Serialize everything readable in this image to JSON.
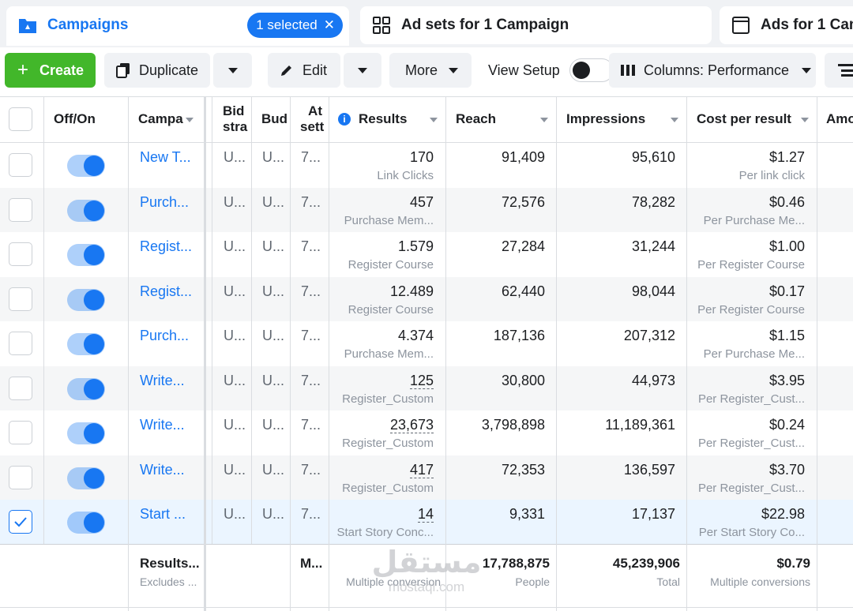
{
  "tabs": {
    "campaigns": {
      "label": "Campaigns",
      "selected_pill": "1 selected",
      "close_glyph": "✕"
    },
    "adsets": {
      "label": "Ad sets for 1 Campaign"
    },
    "ads": {
      "label": "Ads for 1 Cam"
    }
  },
  "toolbar": {
    "create": "Create",
    "duplicate": "Duplicate",
    "edit": "Edit",
    "more": "More",
    "view_setup": "View Setup",
    "columns": "Columns: Performance"
  },
  "header": {
    "offon": "Off/On",
    "campaign": "Campa",
    "bid_line1": "Bid",
    "bid_line2": "stra",
    "budget": "Bud",
    "attr_line1": "At",
    "attr_line2": "sett",
    "results": "Results",
    "reach": "Reach",
    "impressions": "Impressions",
    "cost": "Cost per result",
    "amount": "Amo"
  },
  "rows": [
    {
      "name": "New T...",
      "bid": "U...",
      "budget": "U...",
      "attr": "7...",
      "results": "170",
      "results_sub": "Link Clicks",
      "reach": "91,409",
      "impressions": "95,610",
      "cost": "$1.27",
      "cost_sub": "Per link click",
      "selected": false
    },
    {
      "name": "Purch...",
      "bid": "U...",
      "budget": "U...",
      "attr": "7...",
      "results": "457",
      "results_sub": "Purchase Mem...",
      "reach": "72,576",
      "impressions": "78,282",
      "cost": "$0.46",
      "cost_sub": "Per Purchase Me...",
      "selected": false
    },
    {
      "name": "Regist...",
      "bid": "U...",
      "budget": "U...",
      "attr": "7...",
      "results": "1.579",
      "results_sub": "Register Course",
      "reach": "27,284",
      "impressions": "31,244",
      "cost": "$1.00",
      "cost_sub": "Per Register Course",
      "selected": false
    },
    {
      "name": "Regist...",
      "bid": "U...",
      "budget": "U...",
      "attr": "7...",
      "results": "12.489",
      "results_sub": "Register Course",
      "reach": "62,440",
      "impressions": "98,044",
      "cost": "$0.17",
      "cost_sub": "Per Register Course",
      "selected": false
    },
    {
      "name": "Purch...",
      "bid": "U...",
      "budget": "U...",
      "attr": "7...",
      "results": "4.374",
      "results_sub": "Purchase Mem...",
      "reach": "187,136",
      "impressions": "207,312",
      "cost": "$1.15",
      "cost_sub": "Per Purchase Me...",
      "selected": false
    },
    {
      "name": "Write...",
      "bid": "U...",
      "budget": "U...",
      "attr": "7...",
      "results": "125",
      "results_sub": "Register_Custom",
      "reach": "30,800",
      "impressions": "44,973",
      "cost": "$3.95",
      "cost_sub": "Per Register_Cust...",
      "selected": false
    },
    {
      "name": "Write...",
      "bid": "U...",
      "budget": "U...",
      "attr": "7...",
      "results": "23,673",
      "results_sub": "Register_Custom",
      "reach": "3,798,898",
      "impressions": "11,189,361",
      "cost": "$0.24",
      "cost_sub": "Per Register_Cust...",
      "selected": false
    },
    {
      "name": "Write...",
      "bid": "U...",
      "budget": "U...",
      "attr": "7...",
      "results": "417",
      "results_sub": "Register_Custom",
      "reach": "72,353",
      "impressions": "136,597",
      "cost": "$3.70",
      "cost_sub": "Per Register_Cust...",
      "selected": false
    },
    {
      "name": "Start ...",
      "bid": "U...",
      "budget": "U...",
      "attr": "7...",
      "results": "14",
      "results_sub": "Start Story Conc...",
      "reach": "9,331",
      "impressions": "17,137",
      "cost": "$22.98",
      "cost_sub": "Per Start Story Co...",
      "selected": true
    }
  ],
  "totals": {
    "label": "Results...",
    "label_sub": "Excludes ...",
    "attr": "M...",
    "results_sub": "Multiple conversion",
    "reach": "17,788,875",
    "reach_sub": "People",
    "impressions": "45,239,906",
    "impressions_sub": "Total",
    "cost": "$0.79",
    "cost_sub": "Multiple conversions"
  },
  "watermark": {
    "main": "مستقل",
    "sub": "mostaql.com"
  },
  "colors": {
    "accent": "#1877f2",
    "create": "#42b72a",
    "stripe": "#f5f6f7",
    "selected_row": "#ebf5ff"
  }
}
